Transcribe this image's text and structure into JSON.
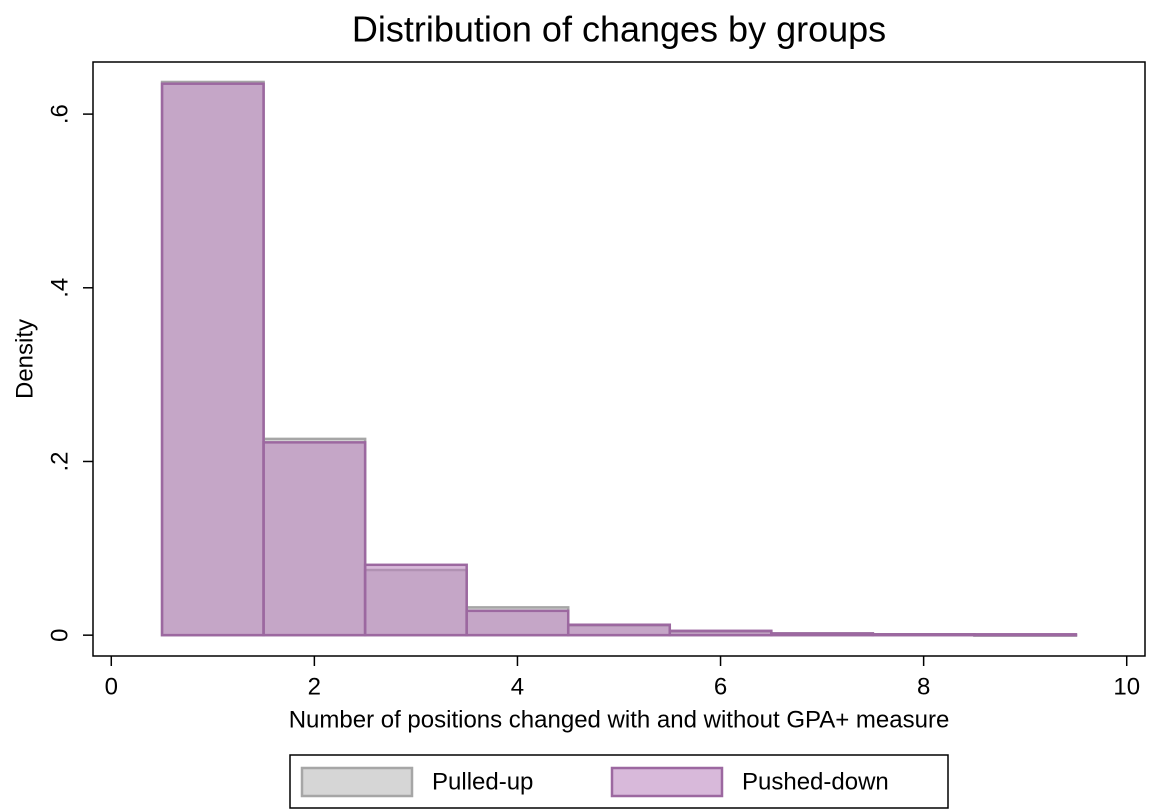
{
  "chart_data": {
    "type": "histogram",
    "title": "Distribution of changes by groups",
    "x_label": "Number of positions changed with and without GPA+ measure",
    "y_label": "Density",
    "bins": [
      0.5,
      1.5,
      2.5,
      3.5,
      4.5,
      5.5,
      6.5,
      7.5,
      8.5,
      9.5
    ],
    "series": [
      {
        "name": "Pulled-up",
        "color": "#b4b4b4",
        "edge": "#a6a6a6",
        "values": [
          0.637,
          0.226,
          0.075,
          0.032,
          0.011,
          0.004,
          0.002,
          0.001,
          0.0
        ]
      },
      {
        "name": "Pushed-down",
        "color": "#b87fbc",
        "edge": "#9c68a0",
        "values": [
          0.635,
          0.222,
          0.081,
          0.028,
          0.012,
          0.005,
          0.002,
          0.001,
          0.001
        ]
      }
    ],
    "xlim": [
      -0.18,
      10.18
    ],
    "ylim": [
      -0.024,
      0.66
    ],
    "xticks": [
      0,
      2,
      4,
      6,
      8,
      10
    ],
    "yticks": [
      0,
      {
        "value": 0.2,
        "label": ".2"
      },
      {
        "value": 0.4,
        "label": ".4"
      },
      {
        "value": 0.6,
        "label": ".6"
      }
    ]
  }
}
